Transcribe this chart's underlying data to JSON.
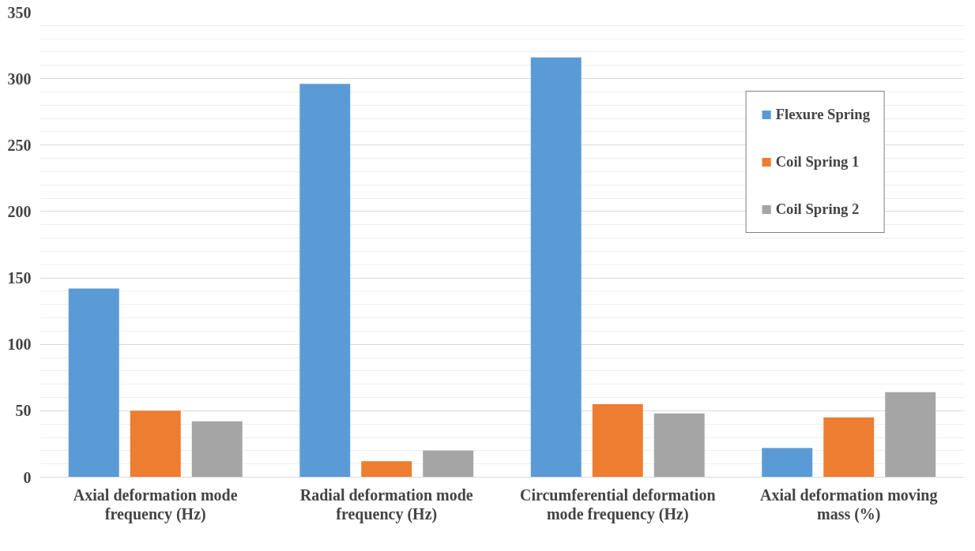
{
  "chart_data": {
    "type": "bar",
    "categories": [
      "Axial deformation mode frequency (Hz)",
      "Radial deformation mode frequency (Hz)",
      "Circumferential deformation mode frequency (Hz)",
      "Axial deformation moving mass (%)"
    ],
    "series": [
      {
        "name": "Flexure Spring",
        "color": "#5b9bd5",
        "values": [
          142,
          296,
          316,
          22
        ]
      },
      {
        "name": "Coil Spring 1",
        "color": "#ed7d31",
        "values": [
          50,
          12,
          55,
          45
        ]
      },
      {
        "name": "Coil Spring 2",
        "color": "#a5a5a5",
        "values": [
          42,
          20,
          48,
          64
        ]
      }
    ],
    "ylim": [
      0,
      350
    ],
    "yticks": [
      0,
      50,
      100,
      150,
      200,
      250,
      300,
      350
    ],
    "grid": "y",
    "legend": "top right"
  }
}
